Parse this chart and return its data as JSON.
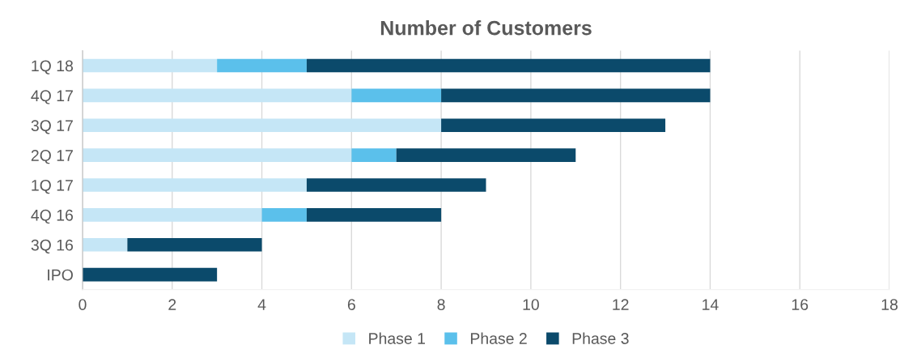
{
  "chart_data": {
    "type": "bar",
    "orientation": "horizontal",
    "stacked": true,
    "title": "Number of Customers",
    "categories": [
      "1Q 18",
      "4Q 17",
      "3Q 17",
      "2Q 17",
      "1Q 17",
      "4Q 16",
      "3Q 16",
      "IPO"
    ],
    "series": [
      {
        "name": "Phase 1",
        "color": "#c5e6f6",
        "values": [
          3,
          6,
          8,
          6,
          5,
          4,
          1,
          0
        ]
      },
      {
        "name": "Phase 2",
        "color": "#5bc0eb",
        "values": [
          2,
          2,
          0,
          1,
          0,
          1,
          0,
          0
        ]
      },
      {
        "name": "Phase 3",
        "color": "#0b4a6b",
        "values": [
          9,
          6,
          5,
          4,
          4,
          3,
          3,
          3
        ]
      }
    ],
    "xlim": [
      0,
      18
    ],
    "xticks": [
      0,
      2,
      4,
      6,
      8,
      10,
      12,
      14,
      16,
      18
    ],
    "grid": "x",
    "legend": "bottom"
  }
}
